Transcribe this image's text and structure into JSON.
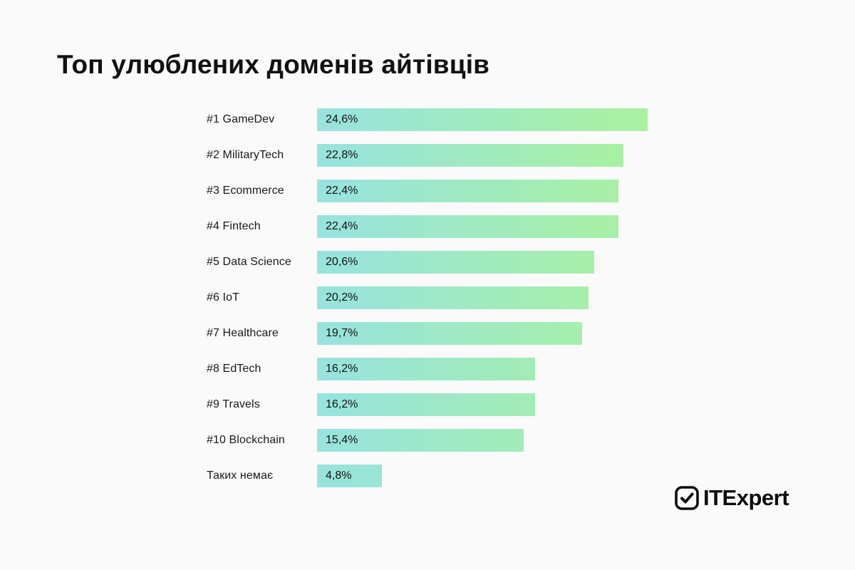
{
  "page": {
    "background": "#FAFAFA",
    "text_color": "#1A1A1A"
  },
  "chart_data": {
    "type": "bar",
    "orientation": "horizontal",
    "title": "Топ улюблених доменів айтівців",
    "categories": [
      "#1 GameDev",
      "#2 MilitaryTech",
      "#3 Ecommerce",
      "#4 Fintech",
      "#5 Data Science",
      "#6 IoT",
      "#7 Healthcare",
      "#8 EdTech",
      "#9 Travels",
      "#10 Blockchain",
      "Таких немає"
    ],
    "values": [
      24.6,
      22.8,
      22.4,
      22.4,
      20.6,
      20.2,
      19.7,
      16.2,
      16.2,
      15.4,
      4.8
    ],
    "value_labels": [
      "24,6%",
      "22,8%",
      "22,4%",
      "22,4%",
      "20,6%",
      "20,2%",
      "19,7%",
      "16,2%",
      "16,2%",
      "15,4%",
      "4,8%"
    ],
    "xlim": [
      0,
      24.6
    ],
    "grid": false,
    "legend": false,
    "axis_ticks": false,
    "bar_gradient_start": "#97E3DF",
    "bar_gradient_end": "#A9F19F",
    "value_label_position": "inside-left"
  },
  "branding": {
    "logo_text": "ITExpert",
    "logo_icon": "checkmark-square-icon"
  }
}
